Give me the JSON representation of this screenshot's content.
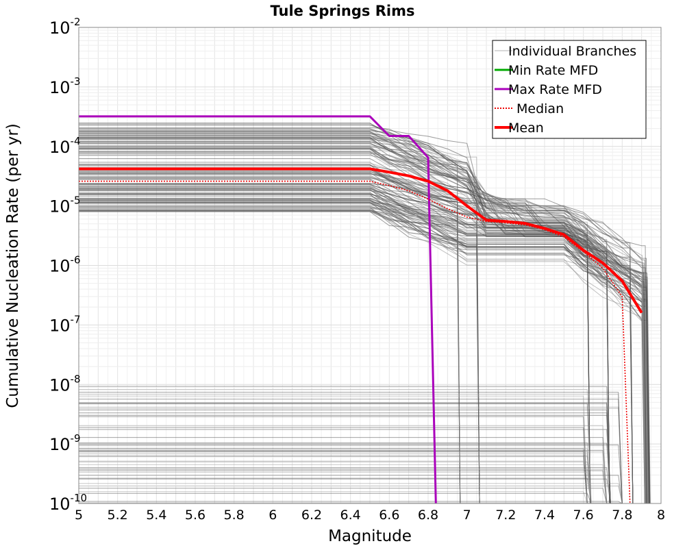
{
  "chart_data": {
    "type": "line",
    "title": "Tule Springs Rims",
    "xlabel": "Magnitude",
    "ylabel": "Cumulative Nucleation Rate (per yr)",
    "xlim": [
      5,
      8
    ],
    "ylim": [
      1e-10,
      0.01
    ],
    "yscale": "log",
    "grid": true,
    "legend_position": "top-right",
    "x_ticks": [
      "5",
      "5.2",
      "5.4",
      "5.6",
      "5.8",
      "6",
      "6.2",
      "6.4",
      "6.6",
      "6.8",
      "7",
      "7.2",
      "7.4",
      "7.6",
      "7.8",
      "8"
    ],
    "y_ticks": [
      {
        "value": 1e-10,
        "base": "10",
        "exp": "-10"
      },
      {
        "value": 1e-09,
        "base": "10",
        "exp": "-9"
      },
      {
        "value": 1e-08,
        "base": "10",
        "exp": "-8"
      },
      {
        "value": 1e-07,
        "base": "10",
        "exp": "-7"
      },
      {
        "value": 1e-06,
        "base": "10",
        "exp": "-6"
      },
      {
        "value": 1e-05,
        "base": "10",
        "exp": "-5"
      },
      {
        "value": 0.0001,
        "base": "10",
        "exp": "-4"
      },
      {
        "value": 0.001,
        "base": "10",
        "exp": "-3"
      },
      {
        "value": 0.01,
        "base": "10",
        "exp": "-2"
      }
    ],
    "legend": [
      {
        "label": "Individual Branches",
        "color": "#b0b0b0",
        "style": "thin"
      },
      {
        "label": "Min Rate MFD",
        "color": "#00aa00",
        "style": "solid"
      },
      {
        "label": "Max Rate MFD",
        "color": "#aa00bb",
        "style": "solid"
      },
      {
        "label": "Median",
        "color": "#ee0000",
        "style": "dotted"
      },
      {
        "label": "Mean",
        "color": "#ff0000",
        "style": "thick"
      }
    ],
    "series": [
      {
        "name": "Max Rate MFD",
        "color": "#aa00bb",
        "x": [
          5.0,
          6.5,
          6.6,
          6.7,
          6.8,
          6.84
        ],
        "y": [
          0.00032,
          0.00032,
          0.00015,
          0.00015,
          6.5e-05,
          1e-10
        ]
      },
      {
        "name": "Median",
        "color": "#ee0000",
        "x": [
          5.0,
          6.5,
          6.6,
          6.7,
          6.8,
          6.9,
          7.0,
          7.1,
          7.2,
          7.3,
          7.4,
          7.5,
          7.6,
          7.7,
          7.8,
          7.84
        ],
        "y": [
          2.6e-05,
          2.6e-05,
          2.2e-05,
          1.8e-05,
          1.3e-05,
          9e-06,
          6.5e-06,
          5.5e-06,
          5.2e-06,
          4.8e-06,
          4e-06,
          3e-06,
          1.7e-06,
          9e-07,
          3e-07,
          1e-10
        ]
      },
      {
        "name": "Mean",
        "color": "#ff0000",
        "x": [
          5.0,
          6.5,
          6.6,
          6.7,
          6.8,
          6.9,
          7.0,
          7.1,
          7.2,
          7.3,
          7.4,
          7.5,
          7.6,
          7.7,
          7.8,
          7.9
        ],
        "y": [
          4.2e-05,
          4.2e-05,
          3.7e-05,
          3.2e-05,
          2.6e-05,
          1.8e-05,
          1e-05,
          5.8e-06,
          5.5e-06,
          5.1e-06,
          4.2e-06,
          3.3e-06,
          1.8e-06,
          1.1e-06,
          5.5e-07,
          1.6e-07
        ]
      }
    ],
    "branches": {
      "description": "Grey individual logic-tree branches",
      "high_group_flat_range": [
        8e-06,
        0.00025
      ],
      "low_group_flat_range": [
        1e-10,
        1e-08
      ],
      "flat_until": 6.5,
      "drop_magnitudes": [
        6.95,
        7.05,
        7.62,
        7.72,
        7.84,
        7.93
      ]
    }
  }
}
